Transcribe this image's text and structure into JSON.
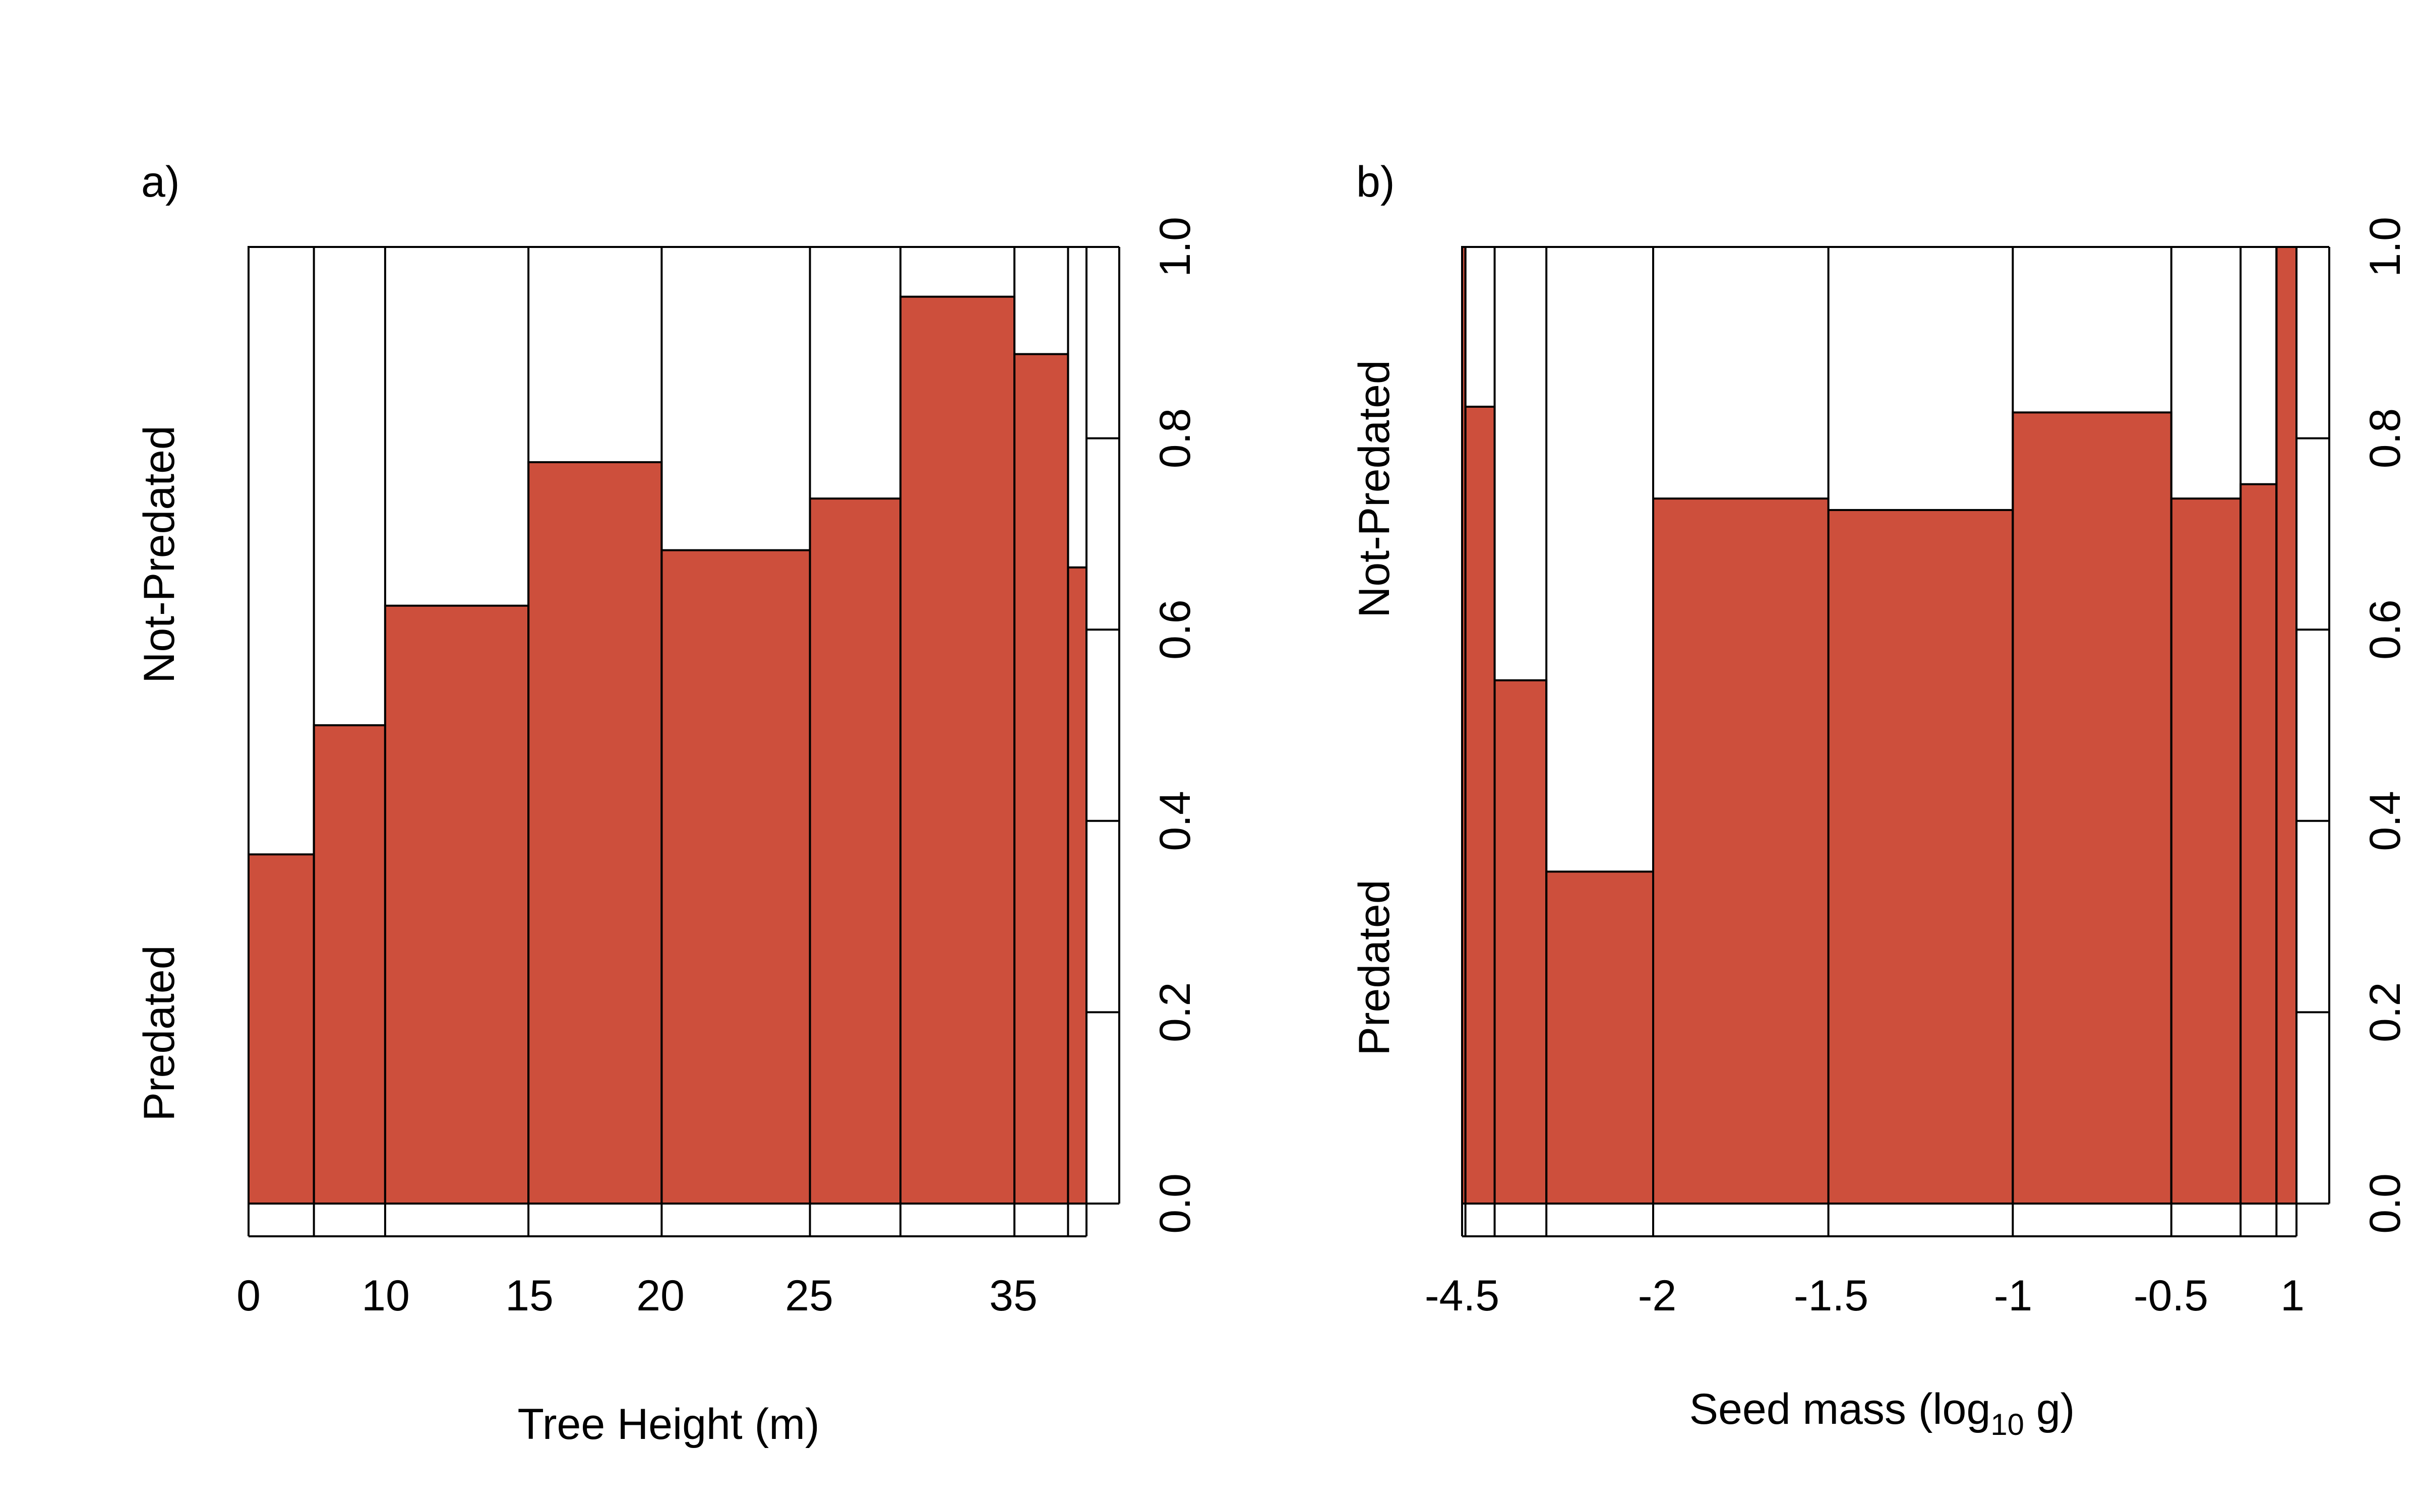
{
  "chart_data": [
    {
      "type": "spineplot",
      "panel_label": "a)",
      "xlabel": "Tree Height (m)",
      "ylabel_lower": "Predated",
      "ylabel_upper": "Not-Predated",
      "fill_color": "#cd4f3c",
      "x_tick_labels": [
        "0",
        "10",
        "15",
        "20",
        "25",
        "35"
      ],
      "y_ticks": [
        "0.0",
        "0.2",
        "0.4",
        "0.6",
        "0.8",
        "1.0"
      ],
      "ylim": [
        0,
        1
      ],
      "bins": [
        {
          "predated_proportion": 0.365,
          "width_fraction": 0.078
        },
        {
          "predated_proportion": 0.5,
          "width_fraction": 0.085
        },
        {
          "predated_proportion": 0.625,
          "width_fraction": 0.171
        },
        {
          "predated_proportion": 0.775,
          "width_fraction": 0.159
        },
        {
          "predated_proportion": 0.683,
          "width_fraction": 0.177
        },
        {
          "predated_proportion": 0.737,
          "width_fraction": 0.108
        },
        {
          "predated_proportion": 0.948,
          "width_fraction": 0.136
        },
        {
          "predated_proportion": 0.888,
          "width_fraction": 0.064
        },
        {
          "predated_proportion": 0.665,
          "width_fraction": 0.022
        }
      ]
    },
    {
      "type": "spineplot",
      "panel_label": "b)",
      "xlabel": "Seed mass (log",
      "xlabel_sub": "10",
      "xlabel_suffix": " g)",
      "ylabel_lower": "Predated",
      "ylabel_upper": "Not-Predated",
      "fill_color": "#cd4f3c",
      "x_tick_labels": [
        "-4.5",
        "-2",
        "-1.5",
        "-1",
        "-0.5",
        "1"
      ],
      "y_ticks": [
        "0.0",
        "0.2",
        "0.4",
        "0.6",
        "0.8",
        "1.0"
      ],
      "ylim": [
        0,
        1
      ],
      "bins": [
        {
          "predated_proportion": 1.0,
          "width_fraction": 0.004
        },
        {
          "predated_proportion": 0.833,
          "width_fraction": 0.035
        },
        {
          "predated_proportion": 0.547,
          "width_fraction": 0.062
        },
        {
          "predated_proportion": 0.347,
          "width_fraction": 0.128
        },
        {
          "predated_proportion": 0.737,
          "width_fraction": 0.21
        },
        {
          "predated_proportion": 0.725,
          "width_fraction": 0.221
        },
        {
          "predated_proportion": 0.827,
          "width_fraction": 0.19
        },
        {
          "predated_proportion": 0.737,
          "width_fraction": 0.083
        },
        {
          "predated_proportion": 0.752,
          "width_fraction": 0.043
        },
        {
          "predated_proportion": 1.0,
          "width_fraction": 0.024
        }
      ]
    }
  ]
}
